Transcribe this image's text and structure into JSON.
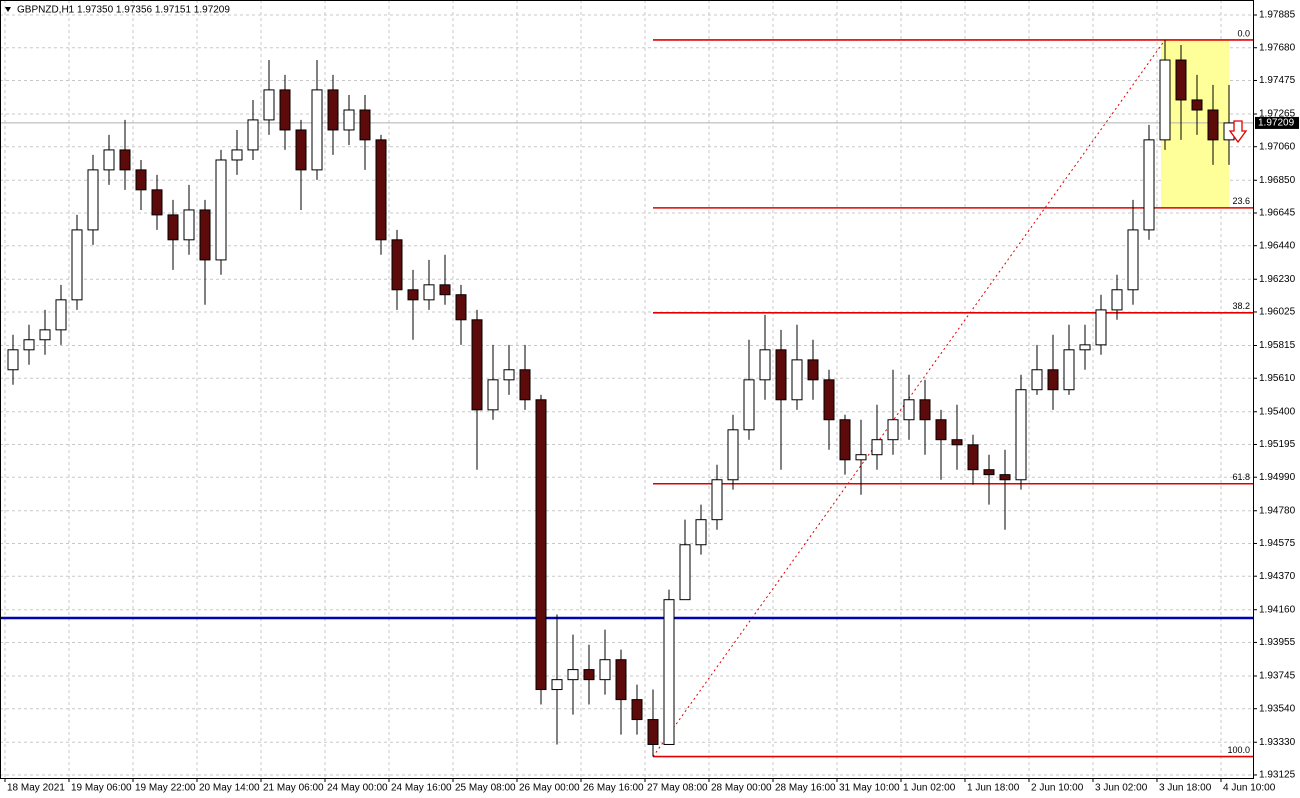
{
  "chart_data": {
    "type": "candlestick",
    "title": "GBPNZD,H1  1.97350 1.97356 1.97151 1.97209",
    "categories": [
      "18 May 2021",
      null,
      null,
      null,
      "19 May 06:00",
      null,
      null,
      null,
      "19 May 22:00",
      null,
      null,
      null,
      "20 May 14:00",
      null,
      null,
      null,
      "21 May 06:00",
      null,
      null,
      null,
      "24 May 00:00",
      null,
      null,
      null,
      "24 May 16:00",
      null,
      null,
      null,
      "25 May 08:00",
      null,
      null,
      null,
      "26 May 00:00",
      null,
      null,
      null,
      "26 May 16:00",
      null,
      null,
      null,
      "27 May 08:00",
      null,
      null,
      null,
      "28 May 00:00",
      null,
      null,
      null,
      "28 May 16:00",
      null,
      null,
      null,
      "31 May 10:00",
      null,
      null,
      null,
      "1 Jun 02:00",
      null,
      null,
      null,
      "1 Jun 18:00",
      null,
      null,
      null,
      "2 Jun 10:00",
      null,
      null,
      null,
      "3 Jun 02:00",
      null,
      null,
      null,
      "3 Jun 18:00",
      null,
      null,
      null,
      "4 Jun 10:00"
    ],
    "open": [
      1.95663,
      1.95788,
      1.95851,
      1.95913,
      1.96101,
      1.96539,
      1.96915,
      1.9704,
      1.96915,
      1.9679,
      1.96633,
      1.96477,
      1.96664,
      1.96351,
      1.96977,
      1.9704,
      1.97228,
      1.97416,
      1.97165,
      1.96915,
      1.97416,
      1.97165,
      1.9729,
      1.97103,
      1.96477,
      1.96164,
      1.96101,
      1.96195,
      1.96133,
      1.95976,
      1.95412,
      1.956,
      1.95663,
      1.95475,
      1.9366,
      1.93722,
      1.93785,
      1.93722,
      1.93847,
      1.93597,
      1.93472,
      1.93316,
      1.94223,
      1.94567,
      1.94724,
      1.94974,
      1.95287,
      1.956,
      1.95788,
      1.95475,
      1.95725,
      1.956,
      1.9535,
      1.95099,
      1.95131,
      1.95225,
      1.9535,
      1.95475,
      1.9535,
      1.95225,
      1.95193,
      1.95037,
      1.95006,
      1.94974,
      1.95538,
      1.95663,
      1.95538,
      1.95788,
      1.95819,
      1.96038,
      1.96164,
      1.96539,
      1.97103,
      1.97603,
      1.97353,
      1.9729,
      1.97103
    ],
    "high": [
      1.95882,
      1.95945,
      1.96038,
      1.96195,
      1.96633,
      1.97009,
      1.97134,
      1.97228,
      1.96977,
      1.96884,
      1.96727,
      1.96821,
      1.96727,
      1.9704,
      1.97165,
      1.97353,
      1.97603,
      1.9751,
      1.97228,
      1.97603,
      1.9751,
      1.97384,
      1.97384,
      1.97134,
      1.96539,
      1.96289,
      1.96351,
      1.96383,
      1.96195,
      1.96038,
      1.95819,
      1.95819,
      1.95819,
      1.95506,
      1.9413,
      1.94004,
      1.93941,
      1.94035,
      1.9391,
      1.93691,
      1.9366,
      1.94286,
      1.94724,
      1.94818,
      1.95068,
      1.95381,
      1.95851,
      1.96007,
      1.95913,
      1.95945,
      1.95851,
      1.95663,
      1.95381,
      1.9535,
      1.95444,
      1.95663,
      1.95632,
      1.956,
      1.95412,
      1.95444,
      1.95256,
      1.95131,
      1.95162,
      1.95632,
      1.95819,
      1.95882,
      1.95945,
      1.95945,
      1.96133,
      1.96258,
      1.96727,
      1.97197,
      1.97729,
      1.97697,
      1.9751,
      1.97447,
      1.97447
    ],
    "low": [
      1.95569,
      1.95694,
      1.95757,
      1.95819,
      1.96038,
      1.96445,
      1.96821,
      1.9679,
      1.96664,
      1.96539,
      1.96289,
      1.96383,
      1.9607,
      1.96258,
      1.96884,
      1.96977,
      1.97134,
      1.9704,
      1.96664,
      1.96852,
      1.97009,
      1.97071,
      1.96915,
      1.96383,
      1.96038,
      1.95851,
      1.96038,
      1.9607,
      1.95819,
      1.95037,
      1.9535,
      1.95506,
      1.95412,
      1.93566,
      1.93316,
      1.93503,
      1.93566,
      1.93628,
      1.93378,
      1.93378,
      1.9324,
      1.93316,
      1.94223,
      1.94505,
      1.94661,
      1.94912,
      1.95225,
      1.95475,
      1.95037,
      1.95412,
      1.95475,
      1.95162,
      1.95006,
      1.9488,
      1.95037,
      1.95131,
      1.95225,
      1.95131,
      1.94974,
      1.95037,
      1.94943,
      1.94818,
      1.94661,
      1.94912,
      1.95506,
      1.95412,
      1.95506,
      1.95663,
      1.95757,
      1.95976,
      1.9607,
      1.96477,
      1.9704,
      1.97103,
      1.97134,
      1.96946,
      1.96946
    ],
    "close": [
      1.95788,
      1.95851,
      1.95913,
      1.96101,
      1.96539,
      1.96915,
      1.9704,
      1.96915,
      1.9679,
      1.96633,
      1.96477,
      1.96664,
      1.96351,
      1.96977,
      1.9704,
      1.97228,
      1.97416,
      1.97165,
      1.96915,
      1.97416,
      1.97165,
      1.9729,
      1.97103,
      1.96477,
      1.96164,
      1.96101,
      1.96195,
      1.96133,
      1.95976,
      1.95412,
      1.956,
      1.95663,
      1.95475,
      1.9366,
      1.93722,
      1.93785,
      1.93722,
      1.93847,
      1.93597,
      1.93472,
      1.93316,
      1.94223,
      1.94567,
      1.94724,
      1.94974,
      1.95287,
      1.956,
      1.95788,
      1.95475,
      1.95725,
      1.956,
      1.9535,
      1.95099,
      1.95131,
      1.95225,
      1.9535,
      1.95475,
      1.9535,
      1.95225,
      1.95193,
      1.95037,
      1.95006,
      1.94974,
      1.95538,
      1.95663,
      1.95538,
      1.95788,
      1.95819,
      1.96038,
      1.96164,
      1.96539,
      1.97103,
      1.97603,
      1.97353,
      1.9729,
      1.97103,
      1.97209
    ],
    "up_color": "#ffffff",
    "down_color": "#5c0a0a",
    "wick_color": "#000000",
    "ylim": [
      1.93106,
      1.97979
    ],
    "yticks": [
      1.97885,
      {
        "value": 1.9768,
        "label": "1.97680"
      },
      1.97475,
      1.97265,
      {
        "value": 1.9706,
        "label": "1.97060"
      },
      {
        "value": 1.9685,
        "label": "1.96850"
      },
      1.96645,
      {
        "value": 1.9644,
        "label": "1.96440"
      },
      {
        "value": 1.9623,
        "label": "1.96230"
      },
      1.96025,
      1.95815,
      {
        "value": 1.9561,
        "label": "1.95610"
      },
      {
        "value": 1.954,
        "label": "1.95400"
      },
      1.95195,
      {
        "value": 1.9499,
        "label": "1.94990"
      },
      {
        "value": 1.9478,
        "label": "1.94780"
      },
      1.94575,
      {
        "value": 1.9437,
        "label": "1.94370"
      },
      {
        "value": 1.9416,
        "label": "1.94160"
      },
      1.93955,
      1.93745,
      {
        "value": 1.9354,
        "label": "1.93540"
      },
      {
        "value": 1.9333,
        "label": "1.93330"
      },
      1.93125
    ],
    "grid": true,
    "last_price": 1.97209,
    "hline": 1.94108,
    "hline_color": "#0000b4",
    "fibo": {
      "labels": [
        "0.0",
        "23.6",
        "38.2",
        "61.8",
        "100.0"
      ],
      "prices": [
        1.97729,
        1.96677,
        1.9602,
        1.94949,
        1.9324
      ],
      "color": "#e00000",
      "zone_color": "#ffff99"
    }
  }
}
